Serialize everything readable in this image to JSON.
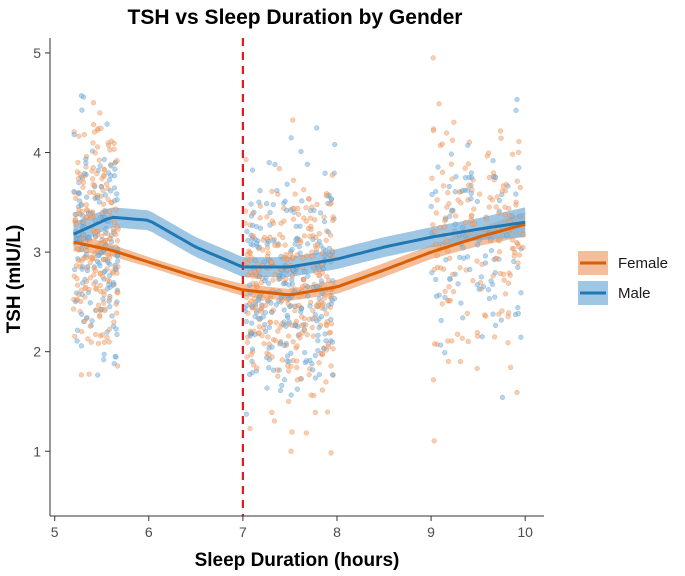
{
  "chart_data": {
    "type": "scatter",
    "title": "TSH vs Sleep Duration by Gender",
    "xlabel": "Sleep Duration (hours)",
    "ylabel": "TSH (mIU/L)",
    "xlim": [
      4.95,
      10.2
    ],
    "ylim": [
      0.35,
      5.15
    ],
    "xticks": [
      5,
      6,
      7,
      8,
      9,
      10
    ],
    "yticks": [
      1,
      2,
      3,
      4,
      5
    ],
    "reference_line": {
      "x": 7,
      "color": "#e41a1c",
      "style": "dashed"
    },
    "legend_position": "right",
    "jitter_groups": [
      {
        "x_range": [
          5.2,
          5.68
        ],
        "y_mean": 3.1,
        "y_sd": 0.55,
        "count": 360
      },
      {
        "x_range": [
          7.02,
          7.98
        ],
        "y_mean": 2.65,
        "y_sd": 0.6,
        "count": 560
      },
      {
        "x_range": [
          9.0,
          9.98
        ],
        "y_mean": 3.1,
        "y_sd": 0.6,
        "count": 260
      }
    ],
    "series": [
      {
        "name": "Female",
        "color": "#d95f02",
        "ribbon_color": "#f0a878",
        "smooth_x": [
          5.2,
          5.6,
          6.0,
          6.5,
          7.0,
          7.5,
          8.0,
          8.5,
          9.0,
          9.5,
          10.0
        ],
        "smooth_y": [
          3.1,
          3.02,
          2.9,
          2.75,
          2.62,
          2.57,
          2.65,
          2.82,
          3.0,
          3.15,
          3.28
        ],
        "ci_halfwidth": [
          0.09,
          0.06,
          0.05,
          0.05,
          0.06,
          0.06,
          0.07,
          0.07,
          0.07,
          0.09,
          0.12
        ]
      },
      {
        "name": "Male",
        "color": "#1f78b4",
        "ribbon_color": "#7fb3da",
        "smooth_x": [
          5.2,
          5.6,
          6.0,
          6.5,
          7.0,
          7.5,
          8.0,
          8.5,
          9.0,
          9.5,
          10.0
        ],
        "smooth_y": [
          3.18,
          3.35,
          3.32,
          3.05,
          2.85,
          2.85,
          2.93,
          3.05,
          3.15,
          3.23,
          3.3
        ],
        "ci_halfwidth": [
          0.12,
          0.1,
          0.1,
          0.1,
          0.1,
          0.1,
          0.1,
          0.1,
          0.1,
          0.11,
          0.15
        ]
      }
    ]
  }
}
